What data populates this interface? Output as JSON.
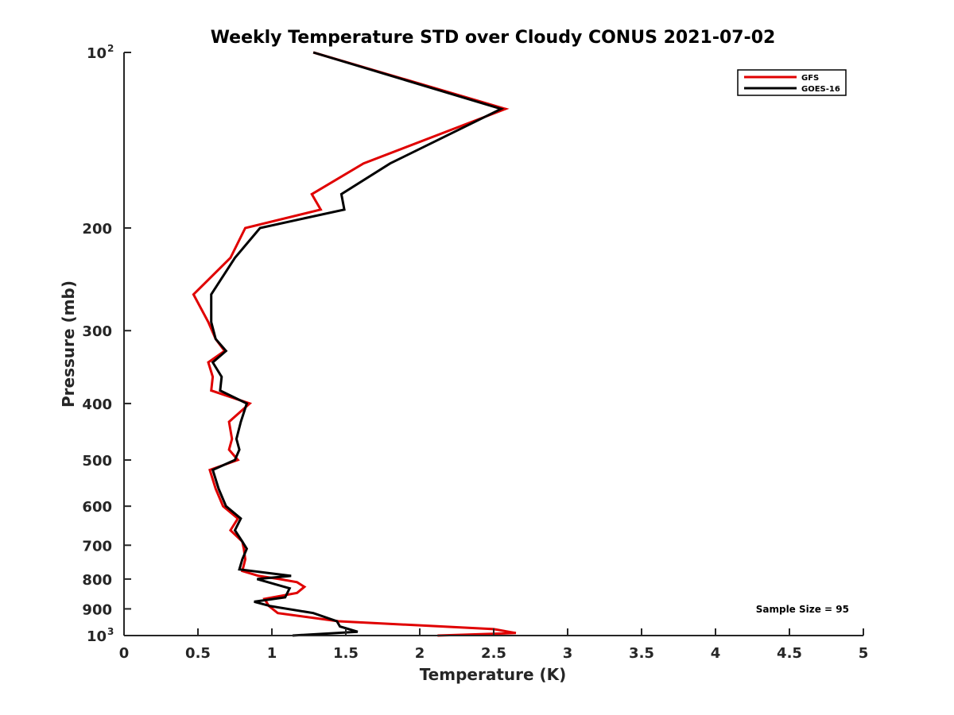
{
  "chart_data": {
    "type": "line",
    "title": "Weekly Temperature STD over Cloudy CONUS 2021-07-02",
    "xlabel": "Temperature (K)",
    "ylabel": "Pressure (mb)",
    "xlim": [
      0,
      5
    ],
    "ylim": [
      100,
      1000
    ],
    "y_scale": "log",
    "y_reversed": true,
    "x_ticks": [
      {
        "value": 0,
        "label": "0"
      },
      {
        "value": 0.5,
        "label": "0.5"
      },
      {
        "value": 1,
        "label": "1"
      },
      {
        "value": 1.5,
        "label": "1.5"
      },
      {
        "value": 2,
        "label": "2"
      },
      {
        "value": 2.5,
        "label": "2.5"
      },
      {
        "value": 3,
        "label": "3"
      },
      {
        "value": 3.5,
        "label": "3.5"
      },
      {
        "value": 4,
        "label": "4"
      },
      {
        "value": 4.5,
        "label": "4.5"
      },
      {
        "value": 5,
        "label": "5"
      }
    ],
    "y_ticks": [
      {
        "value": 100,
        "label": "10",
        "sup": "2"
      },
      {
        "value": 200,
        "label": "200",
        "sup": ""
      },
      {
        "value": 300,
        "label": "300",
        "sup": ""
      },
      {
        "value": 400,
        "label": "400",
        "sup": ""
      },
      {
        "value": 500,
        "label": "500",
        "sup": ""
      },
      {
        "value": 600,
        "label": "600",
        "sup": ""
      },
      {
        "value": 700,
        "label": "700",
        "sup": ""
      },
      {
        "value": 800,
        "label": "800",
        "sup": ""
      },
      {
        "value": 900,
        "label": "900",
        "sup": ""
      },
      {
        "value": 1000,
        "label": "10",
        "sup": "3"
      }
    ],
    "grid": false,
    "legend_position": "top-right",
    "series": [
      {
        "name": "GFS",
        "color": "#e00000",
        "points": [
          [
            1.28,
            100
          ],
          [
            2.58,
            125
          ],
          [
            1.62,
            155
          ],
          [
            1.27,
            175
          ],
          [
            1.33,
            186
          ],
          [
            0.82,
            200
          ],
          [
            0.72,
            225
          ],
          [
            0.47,
            260
          ],
          [
            0.57,
            290
          ],
          [
            0.62,
            310
          ],
          [
            0.68,
            325
          ],
          [
            0.57,
            340
          ],
          [
            0.6,
            360
          ],
          [
            0.59,
            380
          ],
          [
            0.85,
            400
          ],
          [
            0.71,
            430
          ],
          [
            0.73,
            460
          ],
          [
            0.71,
            480
          ],
          [
            0.77,
            500
          ],
          [
            0.58,
            520
          ],
          [
            0.62,
            560
          ],
          [
            0.67,
            600
          ],
          [
            0.77,
            630
          ],
          [
            0.72,
            660
          ],
          [
            0.8,
            690
          ],
          [
            0.81,
            710
          ],
          [
            0.82,
            740
          ],
          [
            0.8,
            775
          ],
          [
            0.91,
            790
          ],
          [
            1.05,
            800
          ],
          [
            1.17,
            810
          ],
          [
            1.22,
            825
          ],
          [
            1.17,
            845
          ],
          [
            0.95,
            865
          ],
          [
            0.98,
            890
          ],
          [
            1.04,
            915
          ],
          [
            1.45,
            945
          ],
          [
            2.5,
            975
          ],
          [
            2.65,
            990
          ],
          [
            2.12,
            1000
          ]
        ]
      },
      {
        "name": "GOES-16",
        "color": "#000000",
        "points": [
          [
            1.28,
            100
          ],
          [
            2.55,
            125
          ],
          [
            1.8,
            155
          ],
          [
            1.47,
            175
          ],
          [
            1.49,
            186
          ],
          [
            0.92,
            200
          ],
          [
            0.75,
            225
          ],
          [
            0.59,
            260
          ],
          [
            0.59,
            290
          ],
          [
            0.62,
            310
          ],
          [
            0.69,
            325
          ],
          [
            0.6,
            340
          ],
          [
            0.66,
            360
          ],
          [
            0.65,
            380
          ],
          [
            0.83,
            400
          ],
          [
            0.79,
            430
          ],
          [
            0.76,
            460
          ],
          [
            0.78,
            480
          ],
          [
            0.75,
            500
          ],
          [
            0.6,
            520
          ],
          [
            0.64,
            560
          ],
          [
            0.69,
            600
          ],
          [
            0.79,
            630
          ],
          [
            0.75,
            660
          ],
          [
            0.8,
            690
          ],
          [
            0.83,
            710
          ],
          [
            0.8,
            740
          ],
          [
            0.78,
            770
          ],
          [
            1.13,
            790
          ],
          [
            0.9,
            800
          ],
          [
            1.12,
            830
          ],
          [
            1.09,
            860
          ],
          [
            0.88,
            875
          ],
          [
            0.99,
            890
          ],
          [
            1.28,
            915
          ],
          [
            1.44,
            945
          ],
          [
            1.46,
            965
          ],
          [
            1.58,
            985
          ],
          [
            1.14,
            1000
          ]
        ]
      }
    ],
    "annotations": [
      {
        "text": "Sample Size = 95",
        "position": "bottom-right"
      }
    ]
  }
}
